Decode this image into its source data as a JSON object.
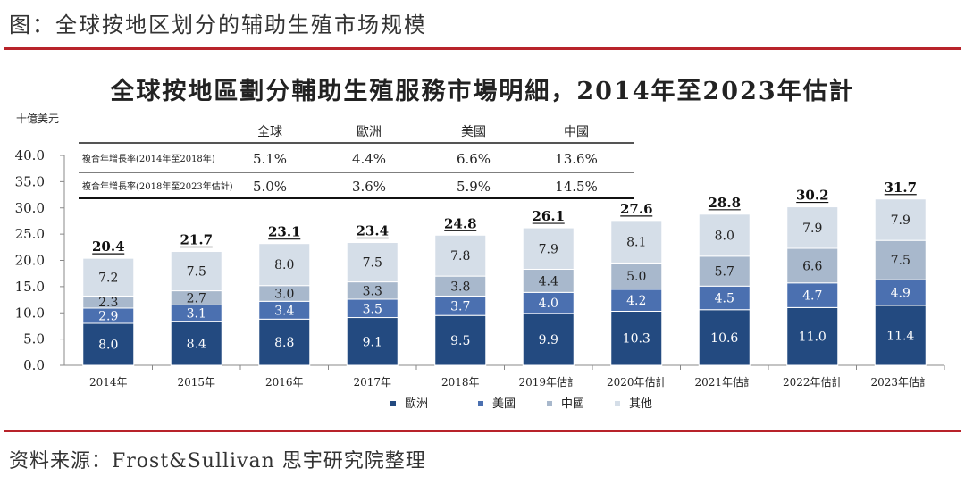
{
  "figure_title": "图：全球按地区划分的辅助生殖市场规模",
  "source": "资料来源：Frost&Sullivan 思宇研究院整理",
  "colors": {
    "accent_line": "#b8232a",
    "europe": "#234a80",
    "us": "#4b70b0",
    "china": "#a8b8cc",
    "other": "#d5dee8"
  },
  "chart_data": {
    "type": "bar",
    "stacked": true,
    "title": "全球按地區劃分輔助生殖服務市場明細，2014年至2023年估計",
    "ylabel": "十億美元",
    "ylim": [
      0,
      40
    ],
    "yticks": [
      "0.0",
      "5.0",
      "10.0",
      "15.0",
      "20.0",
      "25.0",
      "30.0",
      "35.0",
      "40.0"
    ],
    "grid": false,
    "legend_position": "bottom",
    "categories": [
      "2014年",
      "2015年",
      "2016年",
      "2017年",
      "2018年",
      "2019年估計",
      "2020年估計",
      "2021年估計",
      "2022年估計",
      "2023年估計"
    ],
    "series": [
      {
        "name": "歐洲",
        "values": [
          8.0,
          8.4,
          8.8,
          9.1,
          9.5,
          9.9,
          10.3,
          10.6,
          11.0,
          11.4
        ]
      },
      {
        "name": "美國",
        "values": [
          2.9,
          3.1,
          3.4,
          3.5,
          3.7,
          4.0,
          4.2,
          4.5,
          4.7,
          4.9
        ]
      },
      {
        "name": "中國",
        "values": [
          2.3,
          2.7,
          3.0,
          3.3,
          3.8,
          4.4,
          5.0,
          5.7,
          6.6,
          7.5
        ]
      },
      {
        "name": "其他",
        "values": [
          7.2,
          7.5,
          8.0,
          7.5,
          7.8,
          7.9,
          8.1,
          8.0,
          7.9,
          7.9
        ]
      }
    ],
    "totals": [
      "20.4",
      "21.7",
      "23.1",
      "23.4",
      "24.8",
      "26.1",
      "27.6",
      "28.8",
      "30.2",
      "31.7"
    ],
    "cagr_table": {
      "headers": [
        "全球",
        "歐洲",
        "美國",
        "中國"
      ],
      "rows": [
        {
          "label": "複合年增長率(2014年至2018年)",
          "values": [
            "5.1%",
            "4.4%",
            "6.6%",
            "13.6%"
          ]
        },
        {
          "label": "複合年增長率(2018年至2023年估計)",
          "values": [
            "5.0%",
            "3.6%",
            "5.9%",
            "14.5%"
          ]
        }
      ]
    }
  }
}
